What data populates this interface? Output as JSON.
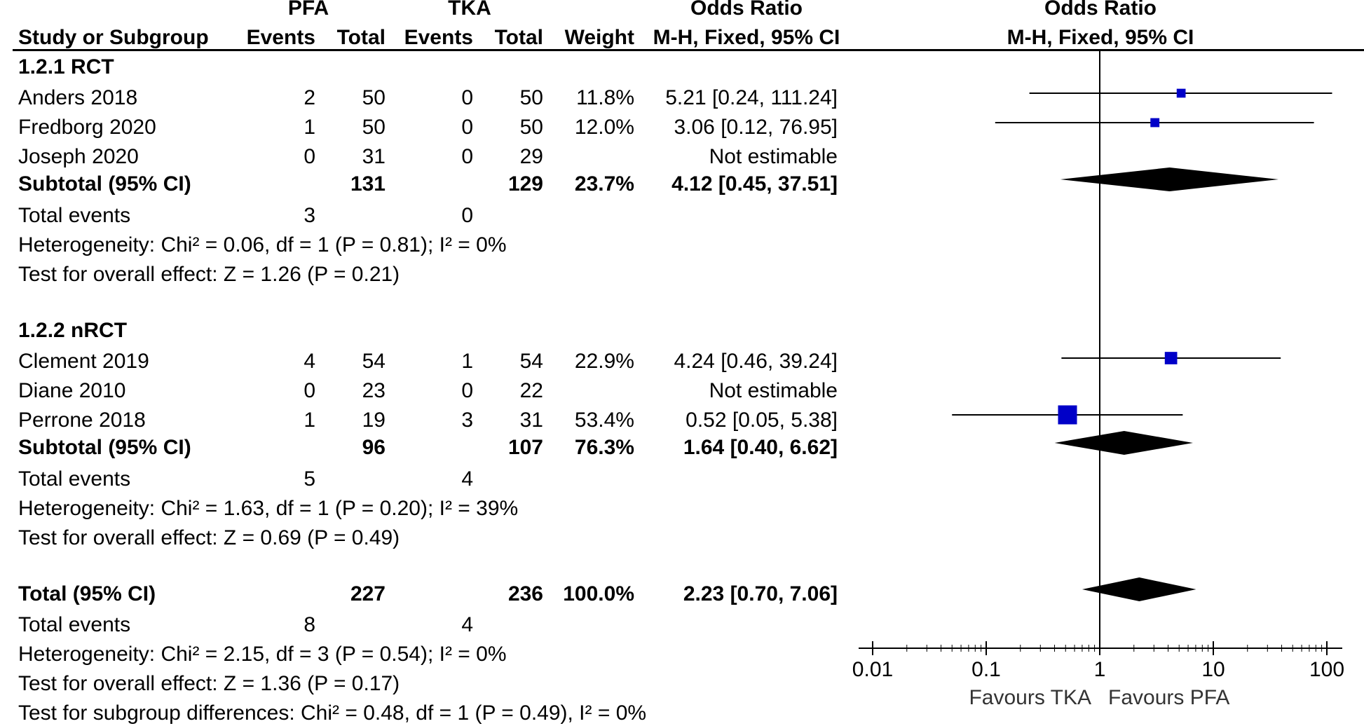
{
  "header": {
    "group1": "PFA",
    "group2": "TKA",
    "or_title": "Odds Ratio",
    "or_method": "M-H, Fixed, 95% CI",
    "plot_title": "Odds Ratio",
    "plot_method": "M-H, Fixed, 95% CI",
    "study_col": "Study or Subgroup",
    "events1": "Events",
    "total1": "Total",
    "events2": "Events",
    "total2": "Total",
    "weight": "Weight"
  },
  "groups": [
    {
      "label": "1.2.1 RCT",
      "studies": [
        {
          "name": "Anders 2018",
          "e1": "2",
          "t1": "50",
          "e2": "0",
          "t2": "50",
          "weight": "11.8%",
          "or_text": "5.21 [0.24, 111.24]"
        },
        {
          "name": "Fredborg 2020",
          "e1": "1",
          "t1": "50",
          "e2": "0",
          "t2": "50",
          "weight": "12.0%",
          "or_text": "3.06 [0.12, 76.95]"
        },
        {
          "name": "Joseph 2020",
          "e1": "0",
          "t1": "31",
          "e2": "0",
          "t2": "29",
          "weight": "",
          "or_text": "Not estimable"
        }
      ],
      "subtotal": {
        "label": "Subtotal (95% CI)",
        "t1": "131",
        "t2": "129",
        "weight": "23.7%",
        "or_text": "4.12 [0.45, 37.51]"
      },
      "total_events": {
        "label": "Total events",
        "e1": "3",
        "e2": "0"
      },
      "heterogeneity": "Heterogeneity: Chi² = 0.06, df = 1 (P = 0.81); I² = 0%",
      "overall_effect": "Test for overall effect: Z = 1.26 (P = 0.21)"
    },
    {
      "label": "1.2.2 nRCT",
      "studies": [
        {
          "name": "Clement 2019",
          "e1": "4",
          "t1": "54",
          "e2": "1",
          "t2": "54",
          "weight": "22.9%",
          "or_text": "4.24 [0.46, 39.24]"
        },
        {
          "name": "Diane 2010",
          "e1": "0",
          "t1": "23",
          "e2": "0",
          "t2": "22",
          "weight": "",
          "or_text": "Not estimable"
        },
        {
          "name": "Perrone 2018",
          "e1": "1",
          "t1": "19",
          "e2": "3",
          "t2": "31",
          "weight": "53.4%",
          "or_text": "0.52 [0.05, 5.38]"
        }
      ],
      "subtotal": {
        "label": "Subtotal (95% CI)",
        "t1": "96",
        "t2": "107",
        "weight": "76.3%",
        "or_text": "1.64 [0.40, 6.62]"
      },
      "total_events": {
        "label": "Total events",
        "e1": "5",
        "e2": "4"
      },
      "heterogeneity": "Heterogeneity: Chi² = 1.63, df = 1 (P = 0.20); I² = 39%",
      "overall_effect": "Test for overall effect: Z = 0.69 (P = 0.49)"
    }
  ],
  "total": {
    "label": "Total (95% CI)",
    "t1": "227",
    "t2": "236",
    "weight": "100.0%",
    "or_text": "2.23 [0.70, 7.06]",
    "total_events": {
      "label": "Total events",
      "e1": "8",
      "e2": "4"
    },
    "heterogeneity": "Heterogeneity: Chi² = 2.15, df = 3 (P = 0.54); I² = 0%",
    "overall_effect": "Test for overall effect: Z = 1.36 (P = 0.17)",
    "subgroup_diff": "Test for subgroup differences: Chi² = 0.48, df = 1 (P = 0.49), I² = 0%"
  },
  "axis": {
    "ticks": [
      "0.01",
      "0.1",
      "1",
      "10",
      "100"
    ],
    "favours_left": "Favours TKA",
    "favours_right": "Favours PFA"
  },
  "chart_data": {
    "type": "forest",
    "scale": "log",
    "xlim": [
      0.01,
      100
    ],
    "null_line": 1,
    "tick_values": [
      0.01,
      0.1,
      1,
      10,
      100
    ],
    "study_color": "#0000c8",
    "diamond_color": "#000000",
    "studies": [
      {
        "name": "Anders 2018",
        "or": 5.21,
        "lo": 0.24,
        "hi": 111.24,
        "weight": 11.8
      },
      {
        "name": "Fredborg 2020",
        "or": 3.06,
        "lo": 0.12,
        "hi": 76.95,
        "weight": 12.0
      },
      {
        "name": "Clement 2019",
        "or": 4.24,
        "lo": 0.46,
        "hi": 39.24,
        "weight": 22.9
      },
      {
        "name": "Perrone 2018",
        "or": 0.52,
        "lo": 0.05,
        "hi": 5.38,
        "weight": 53.4
      }
    ],
    "diamonds": [
      {
        "name": "Subtotal 1.2.1 RCT",
        "or": 4.12,
        "lo": 0.45,
        "hi": 37.51
      },
      {
        "name": "Subtotal 1.2.2 nRCT",
        "or": 1.64,
        "lo": 0.4,
        "hi": 6.62
      },
      {
        "name": "Total",
        "or": 2.23,
        "lo": 0.7,
        "hi": 7.06
      }
    ]
  }
}
